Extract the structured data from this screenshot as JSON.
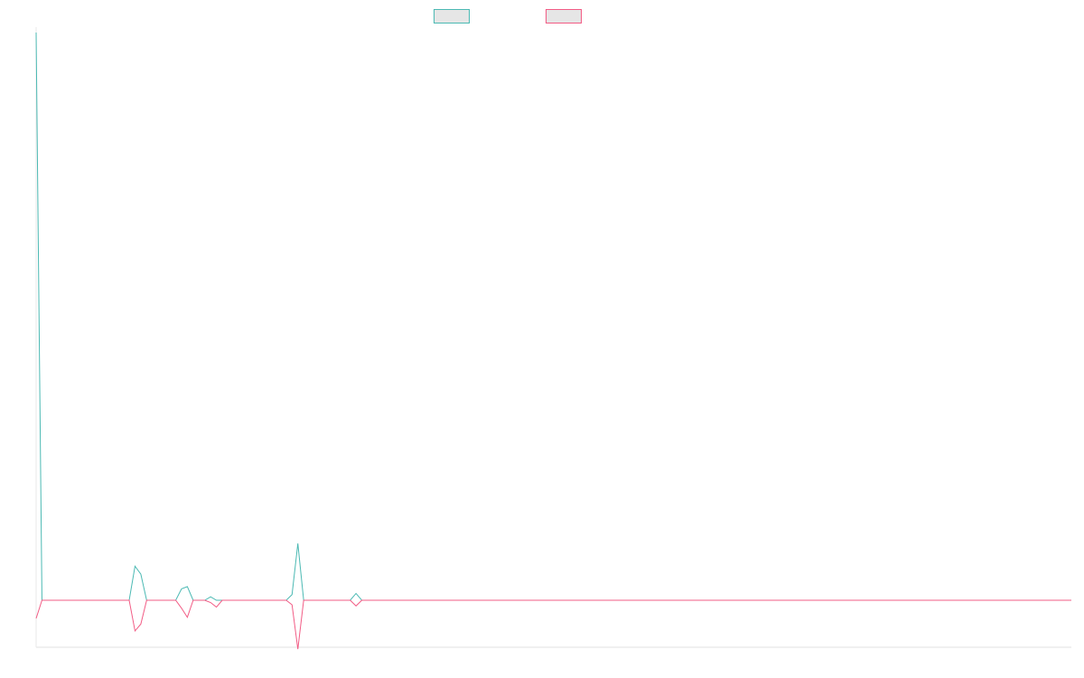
{
  "chart_data": {
    "type": "line",
    "title": "",
    "xlabel": "",
    "ylabel": "",
    "legend_position": "top-center",
    "grid": false,
    "n_points": 179,
    "xlim": [
      0,
      178
    ],
    "ylim": [
      -0.5,
      5
    ],
    "series": [
      {
        "name": "",
        "color": "#4bb9b3",
        "points": [
          [
            0,
            5.0
          ],
          [
            1,
            0.0
          ],
          [
            16,
            0.0
          ],
          [
            17,
            0.3
          ],
          [
            18,
            0.23
          ],
          [
            19,
            0.0
          ],
          [
            24,
            0.0
          ],
          [
            25,
            0.1
          ],
          [
            26,
            0.12
          ],
          [
            27,
            0.0
          ],
          [
            29,
            0.0
          ],
          [
            30,
            0.03
          ],
          [
            31,
            0.0
          ],
          [
            43,
            0.0
          ],
          [
            44,
            0.05
          ],
          [
            45,
            0.5
          ],
          [
            46,
            0.0
          ],
          [
            54,
            0.0
          ],
          [
            55,
            0.06
          ],
          [
            56,
            0.0
          ],
          [
            178,
            0.0
          ]
        ]
      },
      {
        "name": "",
        "color": "#f25c85",
        "points": [
          [
            0,
            -0.16
          ],
          [
            1,
            0.0
          ],
          [
            16,
            0.0
          ],
          [
            17,
            -0.27
          ],
          [
            18,
            -0.21
          ],
          [
            19,
            0.0
          ],
          [
            24,
            0.0
          ],
          [
            25,
            -0.07
          ],
          [
            26,
            -0.15
          ],
          [
            27,
            0.0
          ],
          [
            29,
            0.0
          ],
          [
            30,
            -0.02
          ],
          [
            31,
            -0.06
          ],
          [
            32,
            0.0
          ],
          [
            43,
            0.0
          ],
          [
            44,
            -0.04
          ],
          [
            45,
            -0.43
          ],
          [
            46,
            0.0
          ],
          [
            54,
            0.0
          ],
          [
            55,
            -0.05
          ],
          [
            56,
            0.0
          ],
          [
            178,
            0.0
          ]
        ]
      }
    ]
  }
}
